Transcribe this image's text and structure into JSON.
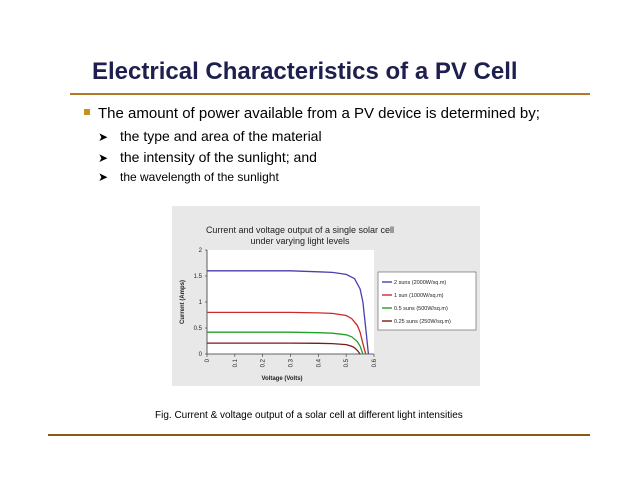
{
  "slide": {
    "title": "Electrical Characteristics of a PV Cell",
    "main_bullet": "The amount of power available from a PV device is determined by;",
    "sub_bullets": [
      "the type and area of the material",
      "the intensity of the sunlight; and",
      "the wavelength of the sunlight"
    ],
    "caption": "Fig. Current & voltage output of a solar cell at different light intensities"
  },
  "chart_data": {
    "type": "line",
    "title": "Current and voltage output of a single solar cell under varying light levels",
    "title_lines": [
      "Current and voltage output of a single solar cell",
      "under varying light levels"
    ],
    "xlabel": "Voltage (Volts)",
    "ylabel": "Current (Amps)",
    "xlim": [
      0,
      0.6
    ],
    "ylim": [
      0,
      2
    ],
    "xticks": [
      "0",
      "0.1",
      "0.2",
      "0.3",
      "0.4",
      "0.5",
      "0.6"
    ],
    "yticks": [
      "0",
      "0.5",
      "1",
      "1.5",
      "2"
    ],
    "legend_position": "right",
    "series": [
      {
        "name": "2 suns (2000W/sq.m)",
        "color": "#4a3fae",
        "x": [
          0,
          0.1,
          0.2,
          0.3,
          0.4,
          0.45,
          0.5,
          0.53,
          0.55,
          0.56,
          0.57,
          0.58
        ],
        "y": [
          1.6,
          1.6,
          1.6,
          1.6,
          1.58,
          1.57,
          1.53,
          1.45,
          1.25,
          1.0,
          0.5,
          0
        ]
      },
      {
        "name": "1 sun (1000W/sq.m)",
        "color": "#cc2a2a",
        "x": [
          0,
          0.1,
          0.2,
          0.3,
          0.4,
          0.45,
          0.5,
          0.52,
          0.54,
          0.55,
          0.56,
          0.57
        ],
        "y": [
          0.8,
          0.8,
          0.8,
          0.8,
          0.79,
          0.78,
          0.74,
          0.68,
          0.55,
          0.42,
          0.2,
          0
        ]
      },
      {
        "name": "0.5 suns (500W/sq.m)",
        "color": "#22a02a",
        "x": [
          0,
          0.1,
          0.2,
          0.3,
          0.4,
          0.45,
          0.5,
          0.52,
          0.54,
          0.55,
          0.56
        ],
        "y": [
          0.42,
          0.42,
          0.42,
          0.42,
          0.41,
          0.4,
          0.37,
          0.33,
          0.24,
          0.15,
          0
        ]
      },
      {
        "name": "0.25 suns (250W/sq.m)",
        "color": "#7a1a1a",
        "x": [
          0,
          0.1,
          0.2,
          0.3,
          0.4,
          0.45,
          0.5,
          0.52,
          0.53,
          0.54,
          0.55
        ],
        "y": [
          0.21,
          0.21,
          0.21,
          0.21,
          0.205,
          0.2,
          0.18,
          0.15,
          0.12,
          0.07,
          0
        ]
      }
    ]
  }
}
